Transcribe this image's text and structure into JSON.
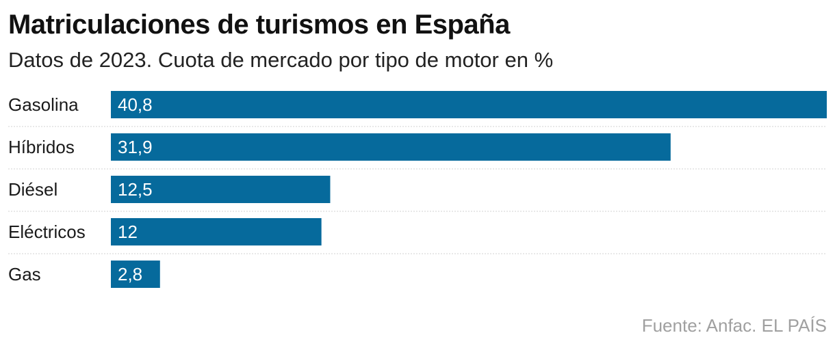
{
  "chart_data": {
    "type": "bar",
    "orientation": "horizontal",
    "title": "Matriculaciones de turismos en España",
    "subtitle": "Datos de 2023. Cuota de mercado por tipo de motor en %",
    "categories": [
      "Gasolina",
      "Híbridos",
      "Diésel",
      "Eléctricos",
      "Gas"
    ],
    "values": [
      40.8,
      31.9,
      12.5,
      12,
      2.8
    ],
    "value_labels": [
      "40,8",
      "31,9",
      "12,5",
      "12",
      "2,8"
    ],
    "xlim": [
      0,
      40.8
    ],
    "bar_color": "#066a9c",
    "grid_color": "#d0d0d0"
  },
  "footer": {
    "source": "Fuente: Anfac",
    "brand": "EL PAÍS"
  }
}
